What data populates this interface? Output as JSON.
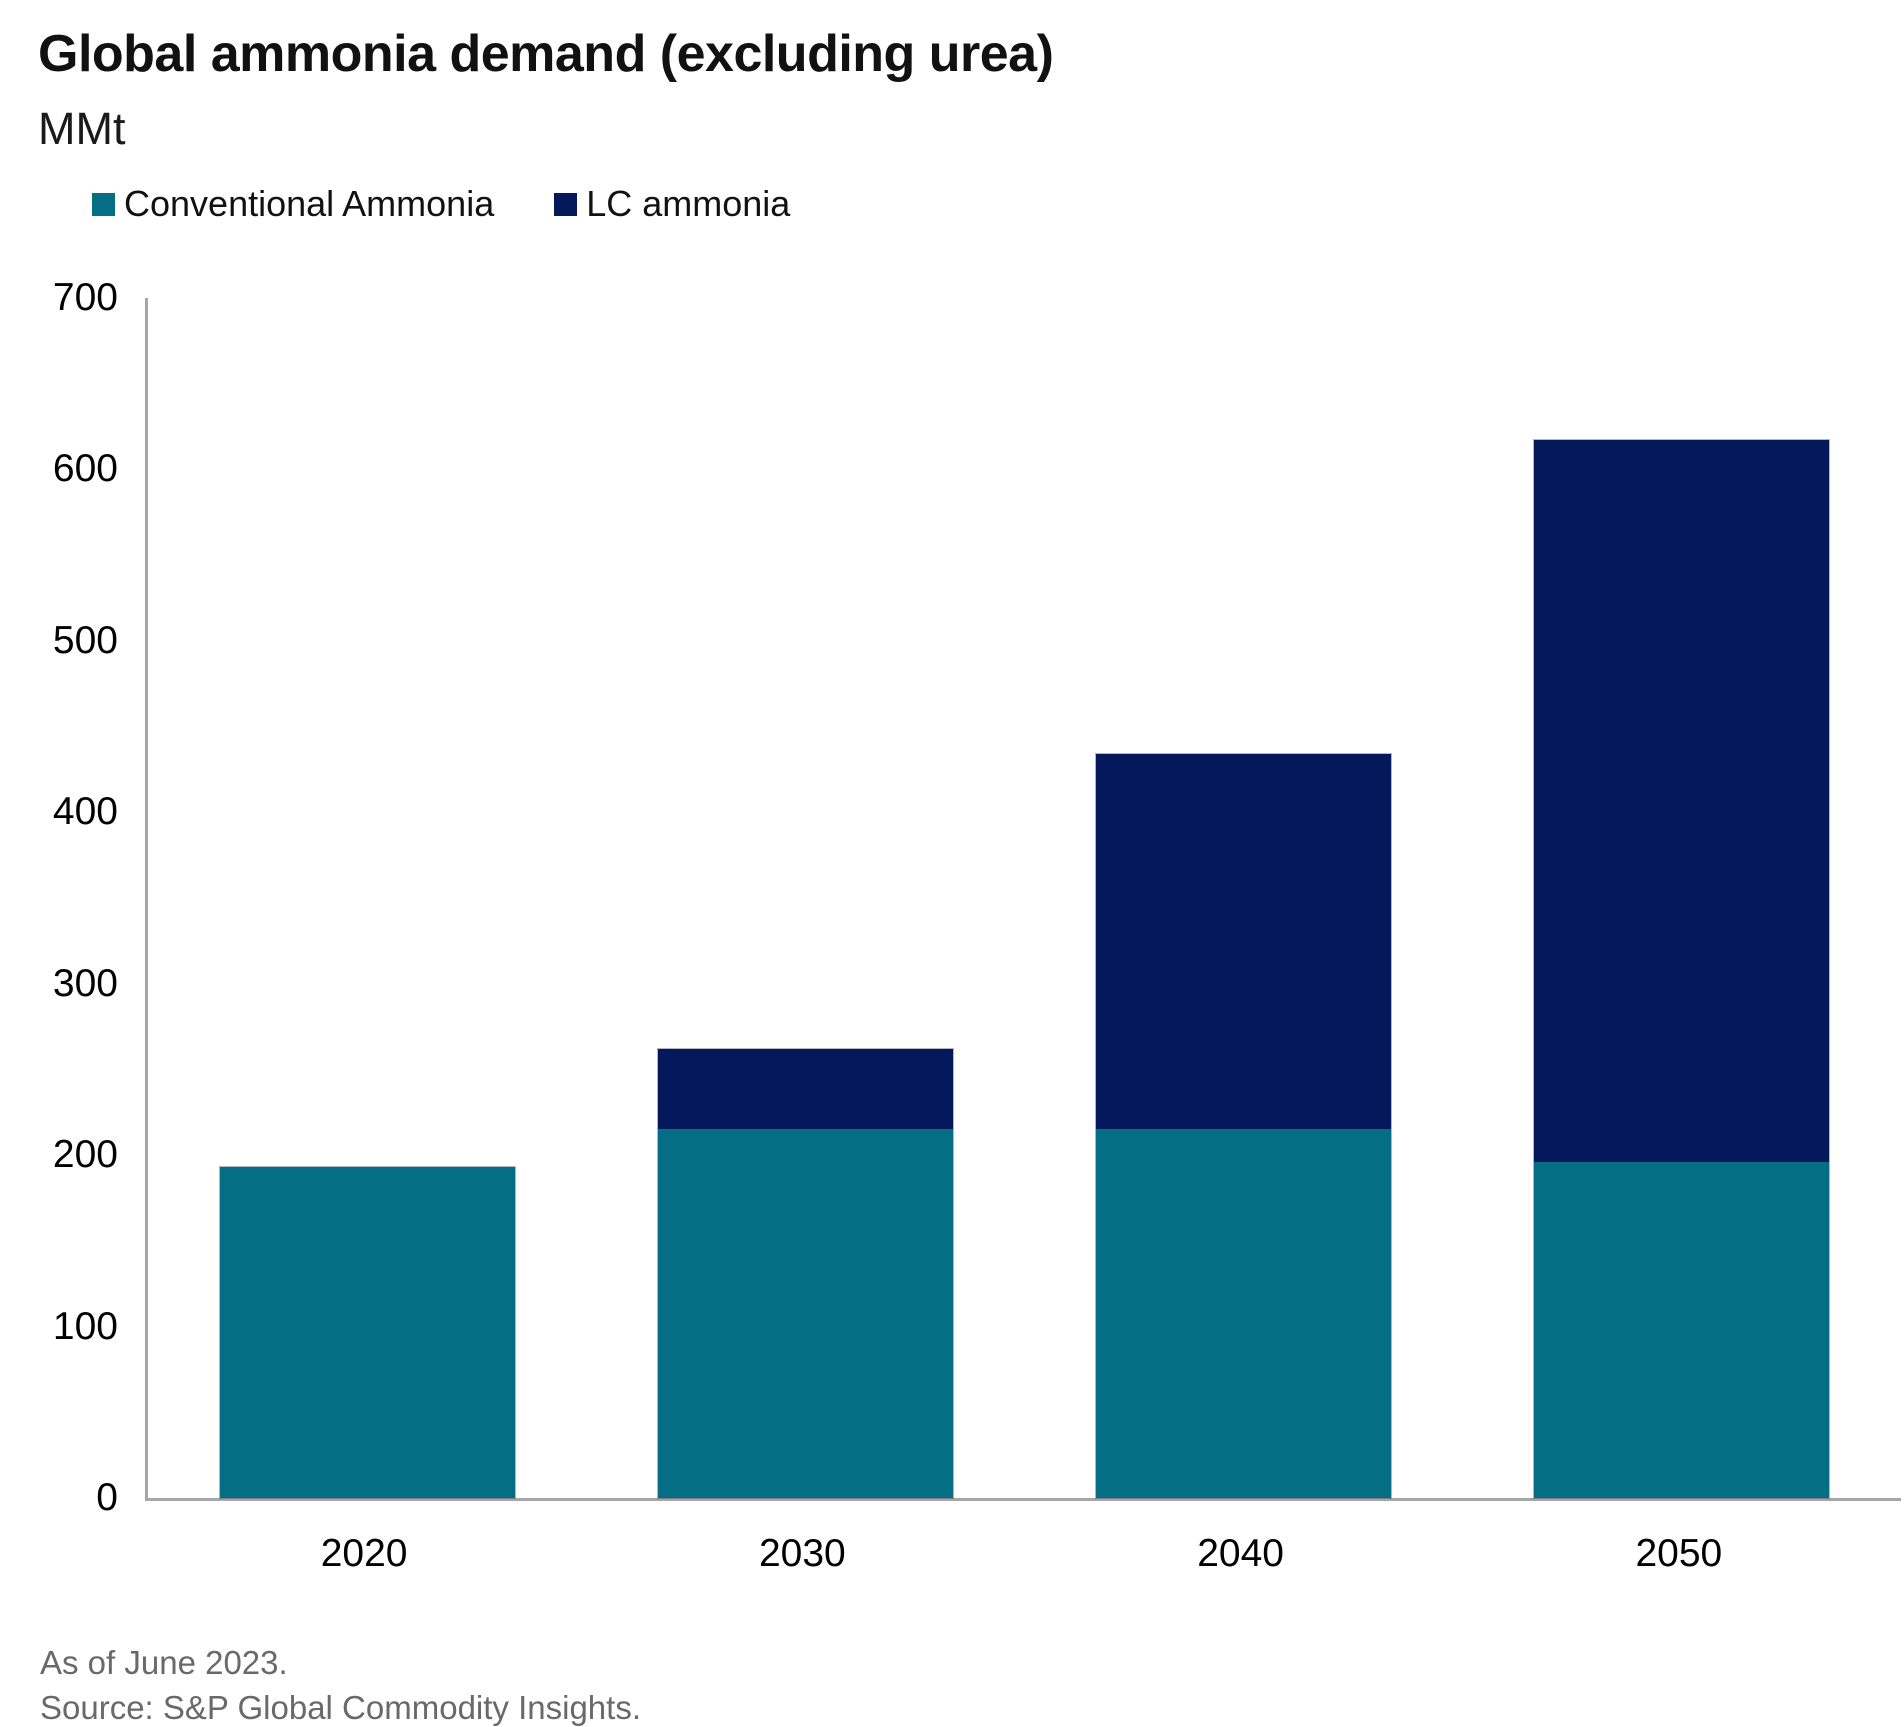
{
  "header": {
    "title": "Global ammonia demand (excluding urea)",
    "units": "MMt"
  },
  "chart_data": {
    "type": "bar",
    "stacked": true,
    "title": "Global ammonia demand (excluding urea)",
    "ylabel": "MMt",
    "xlabel": "",
    "categories": [
      "2020",
      "2030",
      "2040",
      "2050"
    ],
    "series": [
      {
        "name": "Conventional Ammonia",
        "color": "#046E84",
        "values": [
          193,
          215,
          215,
          196
        ]
      },
      {
        "name": "LC ammonia",
        "color": "#05185C",
        "values": [
          0,
          47,
          219,
          421
        ]
      }
    ],
    "totals": [
      193,
      262,
      434,
      617
    ],
    "ylim": [
      0,
      700
    ],
    "yticks": [
      0,
      100,
      200,
      300,
      400,
      500,
      600,
      700
    ],
    "grid": false,
    "legend_position": "top-left",
    "axis_color": "#A6A6A6",
    "tick_label_color": "#000000"
  },
  "footer": {
    "asof": "As of June 2023.",
    "source": "Source: S&P Global Commodity Insights."
  }
}
